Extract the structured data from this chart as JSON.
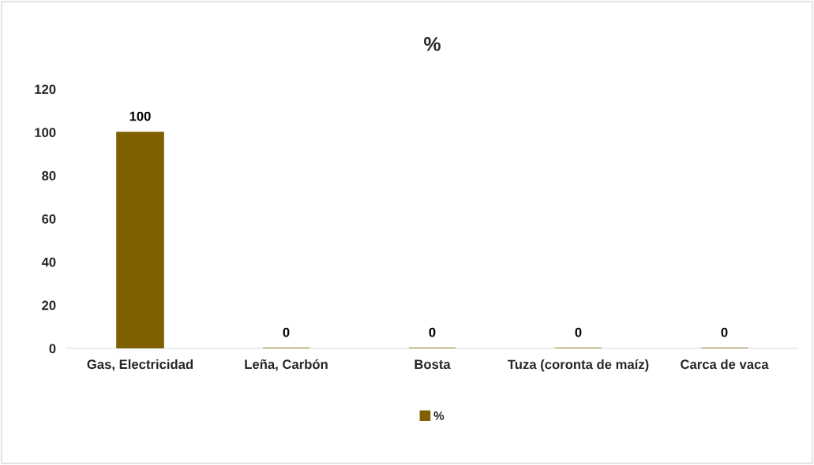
{
  "chart_data": {
    "type": "bar",
    "title": "%",
    "categories": [
      "Gas, Electricidad",
      "Leña, Carbón",
      "Bosta",
      "Tuza (coronta de maíz)",
      "Carca de vaca"
    ],
    "series": [
      {
        "name": "%",
        "color": "#7f6000",
        "values": [
          100,
          0,
          0,
          0,
          0
        ]
      }
    ],
    "ylim": [
      0,
      120
    ],
    "yticks": [
      0,
      20,
      40,
      60,
      80,
      100,
      120
    ],
    "grid": false,
    "data_labels": true,
    "legend": "bottom"
  }
}
